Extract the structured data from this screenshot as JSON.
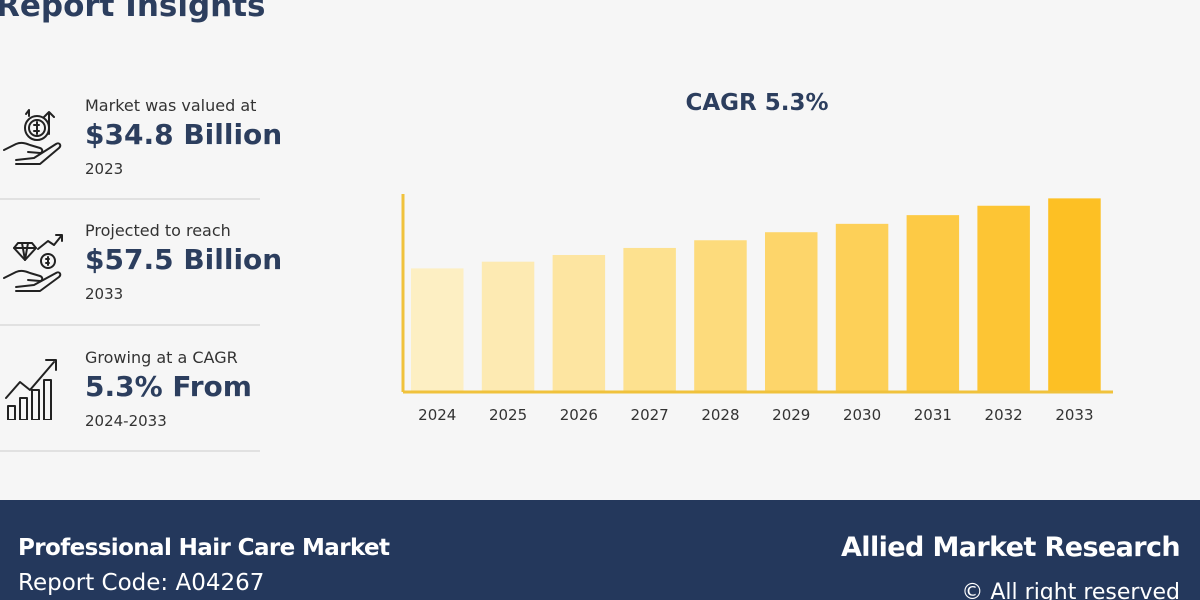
{
  "header": {
    "title": "Report Insights"
  },
  "stats": [
    {
      "label": "Market was valued at",
      "value": "$34.8 Billion",
      "year": "2023",
      "icon": "money-hand-icon"
    },
    {
      "label": "Projected to reach",
      "value": "$57.5 Billion",
      "year": "2033",
      "icon": "diamond-hand-icon"
    },
    {
      "label": "Growing at a CAGR",
      "value": "5.3% From",
      "year": "2024-2033",
      "icon": "growth-chart-icon"
    }
  ],
  "chart_data": {
    "type": "bar",
    "title": "CAGR 5.3%",
    "categories": [
      "2024",
      "2025",
      "2026",
      "2027",
      "2028",
      "2029",
      "2030",
      "2031",
      "2032",
      "2033"
    ],
    "values": [
      36.6,
      38.6,
      40.6,
      42.7,
      45.0,
      47.4,
      49.9,
      52.5,
      55.3,
      57.5
    ],
    "ylim": [
      0,
      60
    ],
    "grid": false,
    "colors": [
      "#fdefc3",
      "#fdeab2",
      "#fde5a1",
      "#fde18f",
      "#fddb7c",
      "#fdd56a",
      "#fdd058",
      "#fdca45",
      "#fdc534",
      "#fdc024"
    ],
    "axis_color": "#f0c23c"
  },
  "footer": {
    "market": "Professional Hair Care Market",
    "report_code": "Report Code: A04267",
    "brand": "Allied Market Research",
    "rights": "© All right reserved"
  }
}
